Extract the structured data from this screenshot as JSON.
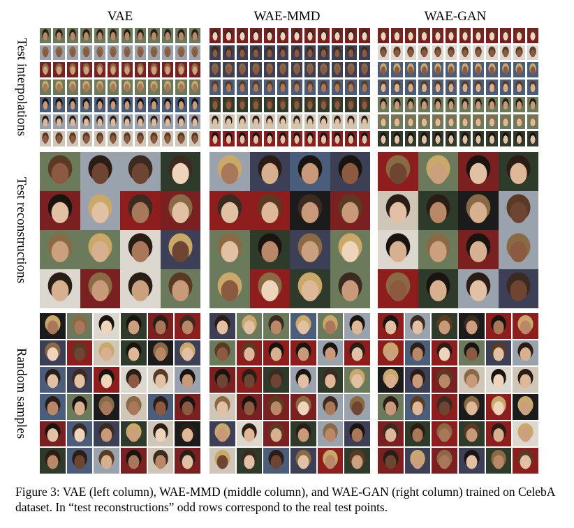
{
  "columns": [
    "VAE",
    "WAE-MMD",
    "WAE-GAN"
  ],
  "rows": [
    "Test interpolations",
    "Test reconstructions",
    "Random samples"
  ],
  "caption": "Figure 3: VAE (left column), WAE-MMD (middle column), and WAE-GAN (right column) trained on CelebA dataset. In “test reconstructions” odd rows correspond to the real test points."
}
